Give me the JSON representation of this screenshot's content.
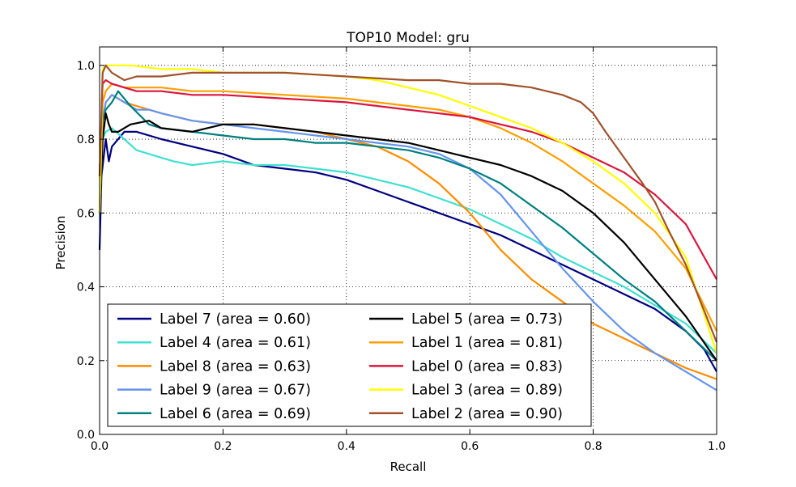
{
  "chart_data": {
    "type": "line",
    "title": "TOP10 Model: gru",
    "xlabel": "Recall",
    "ylabel": "Precision",
    "xlim": [
      0.0,
      1.0
    ],
    "ylim": [
      0.0,
      1.05
    ],
    "xticks": [
      0.0,
      0.2,
      0.4,
      0.6,
      0.8,
      1.0
    ],
    "yticks": [
      0.0,
      0.2,
      0.4,
      0.6,
      0.8,
      1.0
    ],
    "xtick_labels": [
      "0.0",
      "0.2",
      "0.4",
      "0.6",
      "0.8",
      "1.0"
    ],
    "ytick_labels": [
      "0.0",
      "0.2",
      "0.4",
      "0.6",
      "0.8",
      "1.0"
    ],
    "grid": true,
    "legend_position": "lower-left",
    "series": [
      {
        "name": "Label 7 (area = 0.60)",
        "color": "#000080",
        "x": [
          0,
          0.003,
          0.01,
          0.015,
          0.02,
          0.03,
          0.04,
          0.06,
          0.1,
          0.15,
          0.2,
          0.25,
          0.3,
          0.35,
          0.4,
          0.45,
          0.5,
          0.55,
          0.6,
          0.65,
          0.7,
          0.75,
          0.8,
          0.85,
          0.9,
          0.95,
          0.98,
          1.0
        ],
        "y": [
          0.5,
          0.7,
          0.8,
          0.74,
          0.78,
          0.8,
          0.82,
          0.82,
          0.8,
          0.78,
          0.76,
          0.73,
          0.72,
          0.71,
          0.69,
          0.66,
          0.63,
          0.6,
          0.57,
          0.54,
          0.5,
          0.46,
          0.42,
          0.38,
          0.34,
          0.28,
          0.23,
          0.17
        ]
      },
      {
        "name": "Label 4 (area = 0.61)",
        "color": "#40E0D0",
        "x": [
          0,
          0.005,
          0.01,
          0.02,
          0.04,
          0.06,
          0.08,
          0.1,
          0.12,
          0.15,
          0.2,
          0.25,
          0.3,
          0.35,
          0.4,
          0.45,
          0.5,
          0.55,
          0.6,
          0.65,
          0.7,
          0.75,
          0.8,
          0.85,
          0.9,
          0.95,
          1.0
        ],
        "y": [
          0.6,
          0.8,
          0.82,
          0.83,
          0.8,
          0.77,
          0.76,
          0.75,
          0.74,
          0.73,
          0.74,
          0.73,
          0.73,
          0.72,
          0.71,
          0.69,
          0.67,
          0.64,
          0.61,
          0.57,
          0.53,
          0.48,
          0.44,
          0.4,
          0.35,
          0.3,
          0.22
        ]
      },
      {
        "name": "Label 8 (area = 0.63)",
        "color": "#FF8C00",
        "x": [
          0,
          0.005,
          0.01,
          0.02,
          0.04,
          0.06,
          0.1,
          0.15,
          0.2,
          0.25,
          0.3,
          0.35,
          0.4,
          0.45,
          0.5,
          0.55,
          0.6,
          0.62,
          0.65,
          0.7,
          0.75,
          0.8,
          0.85,
          0.9,
          0.95,
          1.0
        ],
        "y": [
          0.6,
          0.85,
          0.9,
          0.92,
          0.9,
          0.89,
          0.87,
          0.85,
          0.84,
          0.84,
          0.83,
          0.82,
          0.8,
          0.78,
          0.74,
          0.68,
          0.6,
          0.56,
          0.5,
          0.42,
          0.36,
          0.3,
          0.26,
          0.22,
          0.18,
          0.15
        ]
      },
      {
        "name": "Label 9 (area = 0.67)",
        "color": "#6495ED",
        "x": [
          0,
          0.005,
          0.01,
          0.02,
          0.04,
          0.06,
          0.08,
          0.1,
          0.15,
          0.2,
          0.25,
          0.3,
          0.35,
          0.4,
          0.45,
          0.5,
          0.55,
          0.6,
          0.65,
          0.7,
          0.75,
          0.8,
          0.85,
          0.9,
          0.95,
          1.0
        ],
        "y": [
          0.6,
          0.85,
          0.9,
          0.92,
          0.9,
          0.88,
          0.88,
          0.87,
          0.85,
          0.84,
          0.83,
          0.82,
          0.81,
          0.8,
          0.79,
          0.78,
          0.76,
          0.72,
          0.65,
          0.55,
          0.45,
          0.36,
          0.28,
          0.22,
          0.17,
          0.12
        ]
      },
      {
        "name": "Label 6 (area = 0.69)",
        "color": "#008080",
        "x": [
          0,
          0.005,
          0.01,
          0.02,
          0.03,
          0.05,
          0.08,
          0.1,
          0.15,
          0.2,
          0.25,
          0.3,
          0.35,
          0.4,
          0.45,
          0.5,
          0.55,
          0.6,
          0.65,
          0.7,
          0.75,
          0.8,
          0.85,
          0.9,
          0.95,
          1.0
        ],
        "y": [
          0.6,
          0.85,
          0.88,
          0.9,
          0.93,
          0.89,
          0.84,
          0.83,
          0.82,
          0.81,
          0.8,
          0.8,
          0.79,
          0.79,
          0.78,
          0.77,
          0.75,
          0.72,
          0.68,
          0.62,
          0.56,
          0.49,
          0.42,
          0.36,
          0.28,
          0.2
        ]
      },
      {
        "name": "Label 5 (area = 0.73)",
        "color": "#000000",
        "x": [
          0,
          0.005,
          0.01,
          0.015,
          0.02,
          0.03,
          0.05,
          0.08,
          0.1,
          0.15,
          0.2,
          0.25,
          0.3,
          0.35,
          0.4,
          0.45,
          0.5,
          0.55,
          0.6,
          0.65,
          0.7,
          0.75,
          0.8,
          0.85,
          0.9,
          0.95,
          1.0
        ],
        "y": [
          0.6,
          0.8,
          0.87,
          0.84,
          0.82,
          0.82,
          0.84,
          0.85,
          0.83,
          0.82,
          0.84,
          0.84,
          0.83,
          0.82,
          0.81,
          0.8,
          0.79,
          0.77,
          0.75,
          0.73,
          0.7,
          0.66,
          0.6,
          0.52,
          0.42,
          0.32,
          0.2
        ]
      },
      {
        "name": "Label 1 (area = 0.81)",
        "color": "#FF9E00",
        "x": [
          0,
          0.005,
          0.01,
          0.02,
          0.04,
          0.06,
          0.1,
          0.15,
          0.2,
          0.3,
          0.4,
          0.5,
          0.55,
          0.6,
          0.65,
          0.7,
          0.75,
          0.8,
          0.85,
          0.9,
          0.95,
          1.0
        ],
        "y": [
          0.6,
          0.9,
          0.93,
          0.95,
          0.94,
          0.94,
          0.94,
          0.93,
          0.93,
          0.92,
          0.91,
          0.89,
          0.88,
          0.86,
          0.83,
          0.79,
          0.74,
          0.68,
          0.62,
          0.55,
          0.45,
          0.28
        ]
      },
      {
        "name": "Label 0 (area = 0.83)",
        "color": "#DC143C",
        "x": [
          0,
          0.005,
          0.01,
          0.02,
          0.04,
          0.06,
          0.1,
          0.15,
          0.2,
          0.3,
          0.4,
          0.5,
          0.55,
          0.6,
          0.65,
          0.7,
          0.75,
          0.8,
          0.85,
          0.9,
          0.95,
          1.0
        ],
        "y": [
          0.7,
          0.95,
          0.96,
          0.95,
          0.94,
          0.93,
          0.93,
          0.92,
          0.92,
          0.91,
          0.9,
          0.88,
          0.87,
          0.86,
          0.84,
          0.82,
          0.79,
          0.75,
          0.71,
          0.65,
          0.57,
          0.42
        ]
      },
      {
        "name": "Label 3 (area = 0.89)",
        "color": "#FFFF00",
        "x": [
          0,
          0.005,
          0.01,
          0.03,
          0.05,
          0.1,
          0.15,
          0.2,
          0.3,
          0.4,
          0.45,
          0.5,
          0.55,
          0.6,
          0.65,
          0.7,
          0.75,
          0.8,
          0.85,
          0.9,
          0.95,
          1.0
        ],
        "y": [
          0.6,
          0.99,
          1.0,
          1.0,
          1.0,
          0.99,
          0.99,
          0.98,
          0.98,
          0.97,
          0.96,
          0.94,
          0.92,
          0.89,
          0.86,
          0.83,
          0.79,
          0.74,
          0.68,
          0.6,
          0.48,
          0.22
        ]
      },
      {
        "name": "Label 2 (area = 0.90)",
        "color": "#A0522D",
        "x": [
          0,
          0.005,
          0.01,
          0.02,
          0.04,
          0.06,
          0.1,
          0.15,
          0.2,
          0.3,
          0.4,
          0.5,
          0.55,
          0.6,
          0.65,
          0.7,
          0.75,
          0.78,
          0.8,
          0.82,
          0.85,
          0.88,
          0.9,
          0.92,
          0.95,
          1.0
        ],
        "y": [
          0.7,
          0.98,
          1.0,
          0.98,
          0.96,
          0.97,
          0.97,
          0.98,
          0.98,
          0.98,
          0.97,
          0.96,
          0.96,
          0.95,
          0.95,
          0.94,
          0.92,
          0.9,
          0.87,
          0.82,
          0.75,
          0.68,
          0.63,
          0.56,
          0.46,
          0.25
        ]
      }
    ]
  }
}
